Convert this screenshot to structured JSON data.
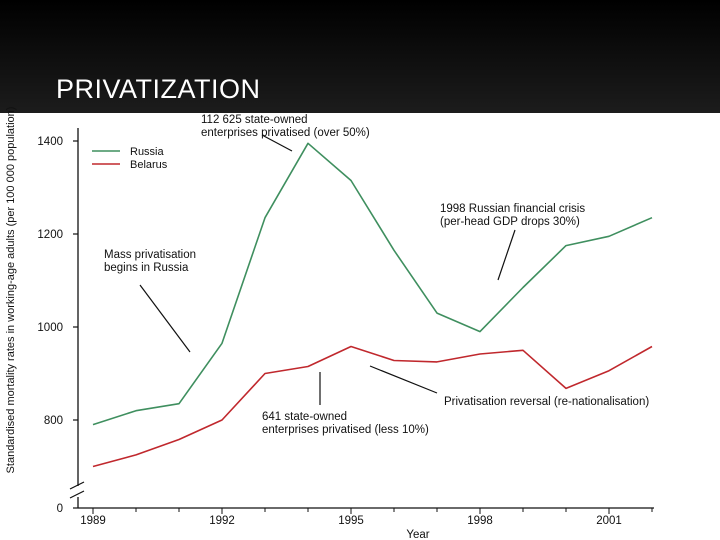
{
  "slide": {
    "title": "PRIVATIZATION"
  },
  "colors": {
    "russia": "#3f8f5f",
    "belarus": "#c0282d",
    "header_bg": "#000000"
  },
  "chart_data": {
    "type": "line",
    "title": "",
    "xlabel": "Year",
    "ylabel": "Standardised mortality rates in working-age adults (per 100 000 population)",
    "xlim": [
      1989,
      2002.7
    ],
    "ylim": [
      0,
      1400
    ],
    "axis_break": "between 0 and 800",
    "grid": false,
    "legend_position": "top-left",
    "x_ticks": [
      "1989",
      "1992",
      "1995",
      "1998",
      "2001"
    ],
    "y_ticks": [
      "0",
      "800",
      "1000",
      "1200",
      "1400"
    ],
    "series": [
      {
        "name": "Russia",
        "color": "#3f8f5f",
        "x": [
          1989,
          1990,
          1991,
          1992,
          1993,
          1994,
          1995,
          1996,
          1997,
          1998,
          1999,
          2000,
          2001,
          2002
        ],
        "y": [
          790,
          820,
          835,
          965,
          1235,
          1395,
          1315,
          1165,
          1030,
          990,
          1085,
          1175,
          1195,
          1235
        ]
      },
      {
        "name": "Belarus",
        "color": "#c0282d",
        "x": [
          1989,
          1990,
          1991,
          1992,
          1993,
          1994,
          1995,
          1996,
          1997,
          1998,
          1999,
          2000,
          2001,
          2002
        ],
        "y": [
          700,
          725,
          758,
          800,
          900,
          915,
          958,
          928,
          925,
          942,
          950,
          868,
          906,
          958
        ]
      }
    ],
    "annotations": [
      {
        "lines": [
          "112 625 state-owned",
          "enterprises privatised (over 50%)"
        ]
      },
      {
        "lines": [
          "1998 Russian financial crisis",
          "(per-head GDP drops 30%)"
        ]
      },
      {
        "lines": [
          "Mass privatisation",
          "begins in Russia"
        ]
      },
      {
        "lines": [
          "641 state-owned",
          "enterprises privatised (less 10%)"
        ]
      },
      {
        "lines": [
          "Privatisation reversal (re-nationalisation)"
        ]
      }
    ]
  }
}
